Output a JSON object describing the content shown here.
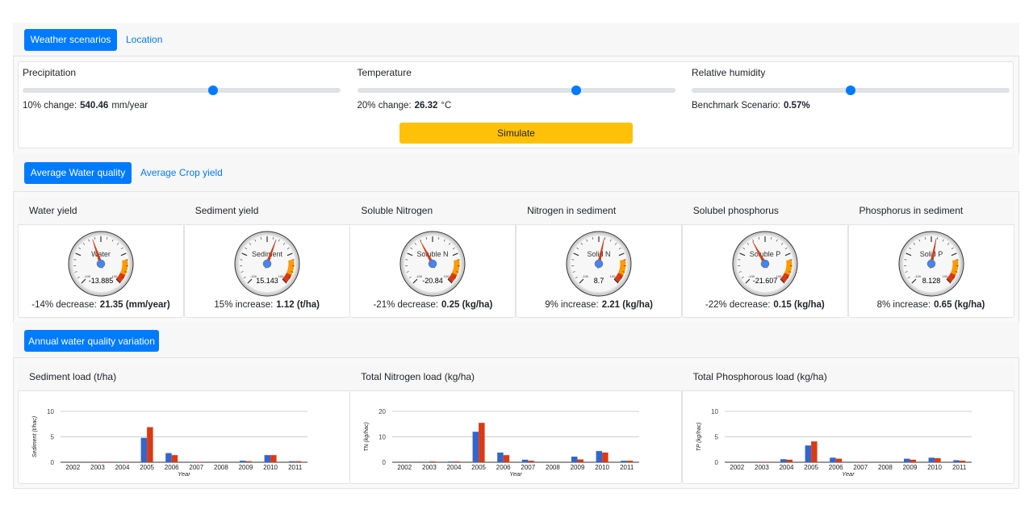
{
  "tabs": [
    "Weather scenarios",
    "Location"
  ],
  "sliders": [
    {
      "label": "Precipitation",
      "value": 60,
      "lim": [
        0,
        100
      ],
      "change": "10% change:",
      "result": "540.46",
      "unit": "mm/year"
    },
    {
      "label": "Temperature",
      "value": 69,
      "lim": [
        0,
        100
      ],
      "change": "20% change:",
      "result": "26.32",
      "unit": "°C"
    },
    {
      "label": "Relative humidity",
      "value": 50,
      "lim": [
        0,
        100
      ],
      "change": "Benchmark Scenario:",
      "result": "0.57%"
    }
  ],
  "button": "Simulate",
  "quality_tabs": [
    "Average Water quality",
    "Average Crop yield"
  ],
  "gauge_lim": [
    -100,
    100
  ],
  "gauge_zones": [
    {
      "from": 60,
      "to": 85,
      "color": "#ff9900"
    },
    {
      "from": 85,
      "to": 100,
      "color": "#dc3912"
    }
  ],
  "gauges": [
    {
      "title": "Water yield",
      "label": "Water",
      "value": -13.885,
      "change": "-14% decrease:",
      "result": "21.35 (mm/year)"
    },
    {
      "title": "Sediment yield",
      "label": "Sediment",
      "value": 15.143,
      "change": "15% increase:",
      "result": "1.12 (t/ha)"
    },
    {
      "title": "Soluble Nitrogen",
      "label": "Soluble N",
      "value": -20.84,
      "change": "-21% decrease:",
      "result": "0.25 (kg/ha)"
    },
    {
      "title": "Nitrogen in sediment",
      "label": "Solid N",
      "value": 8.7,
      "change": "9% increase:",
      "result": "2.21 (kg/ha)"
    },
    {
      "title": "Solubel phosphorus",
      "label": "Soluble P",
      "value": -21.607,
      "change": "-22% decrease:",
      "result": "0.15 (kg/ha)"
    },
    {
      "title": "Phosphorus in sediment",
      "label": "Solid P",
      "value": 8.128,
      "change": "8% increase:",
      "result": "0.65 (kg/ha)"
    }
  ],
  "annual_tab": "Annual water quality variation",
  "chart_data": [
    {
      "type": "bar",
      "title": "Sediment load (t/ha)",
      "xlabel": "Year",
      "ylabel": "Sediment (t/hac)",
      "categories": [
        "2002",
        "2003",
        "2004",
        "2005",
        "2006",
        "2007",
        "2008",
        "2009",
        "2010",
        "2011"
      ],
      "series": [
        {
          "color": "#3366cc",
          "values": [
            0,
            0,
            0.1,
            4.8,
            1.8,
            0,
            0,
            0.3,
            1.4,
            0.2
          ]
        },
        {
          "color": "#dc3912",
          "values": [
            0,
            0.1,
            0.1,
            6.9,
            1.4,
            0.1,
            0,
            0.2,
            1.4,
            0.2
          ]
        }
      ],
      "ylim": [
        0,
        10
      ],
      "yticks": [
        0,
        5,
        10
      ],
      "grid": true
    },
    {
      "type": "bar",
      "title": "Total Nitrogen load (kg/ha)",
      "xlabel": "Year",
      "ylabel": "TN (kg/hac)",
      "categories": [
        "2002",
        "2003",
        "2004",
        "2005",
        "2006",
        "2007",
        "2008",
        "2009",
        "2010",
        "2011"
      ],
      "series": [
        {
          "color": "#3366cc",
          "values": [
            0,
            0.2,
            0.3,
            12,
            3.8,
            1,
            0,
            2.2,
            4.4,
            0.6
          ]
        },
        {
          "color": "#dc3912",
          "values": [
            0,
            0.3,
            0.3,
            15.5,
            2.8,
            0.6,
            0,
            1.1,
            3.8,
            0.6
          ]
        }
      ],
      "ylim": [
        0,
        20
      ],
      "yticks": [
        0,
        10,
        20
      ],
      "grid": true
    },
    {
      "type": "bar",
      "title": "Total Phosphorous load (kg/ha)",
      "xlabel": "Year",
      "ylabel": "TP (kg/hac)",
      "categories": [
        "2002",
        "2003",
        "2004",
        "2005",
        "2006",
        "2007",
        "2008",
        "2009",
        "2010",
        "2011"
      ],
      "series": [
        {
          "color": "#3366cc",
          "values": [
            0,
            0,
            0.6,
            3.3,
            0.9,
            0.1,
            0,
            0.7,
            0.9,
            0.4
          ]
        },
        {
          "color": "#dc3912",
          "values": [
            0,
            0.1,
            0.5,
            4.1,
            0.7,
            0.1,
            0,
            0.5,
            0.8,
            0.3
          ]
        }
      ],
      "ylim": [
        0,
        10
      ],
      "yticks": [
        0,
        5,
        10
      ],
      "grid": true
    }
  ]
}
